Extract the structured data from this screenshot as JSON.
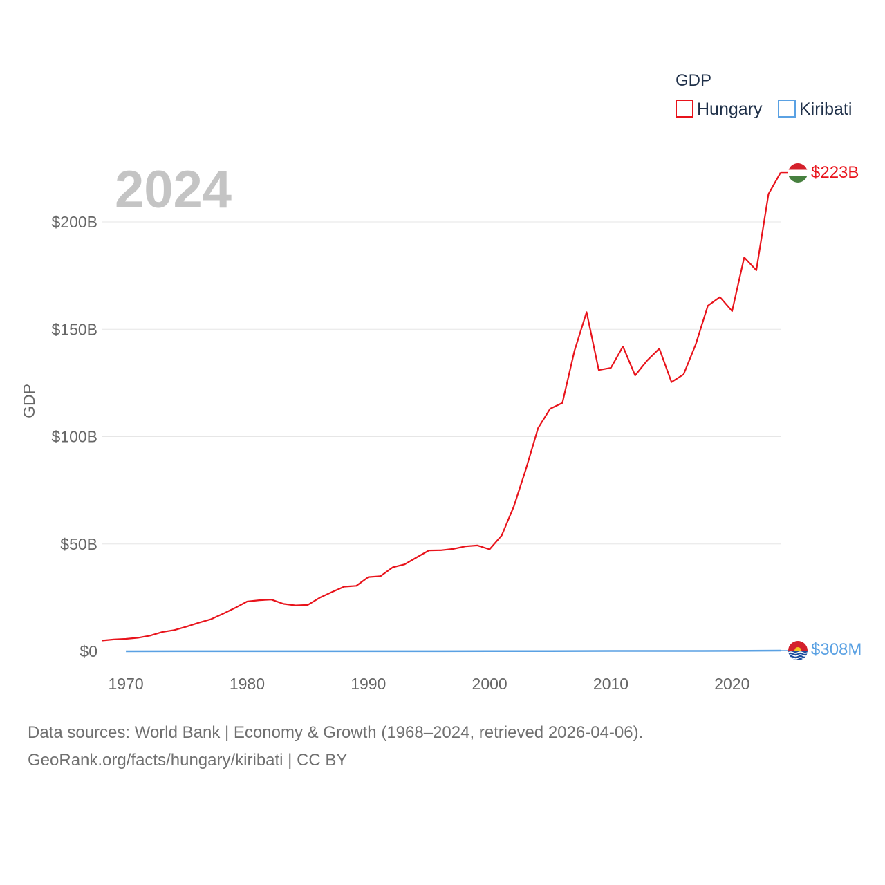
{
  "chart_data": {
    "type": "line",
    "current_year": "2024",
    "ylabel": "GDP",
    "xlabel": "",
    "xlim": [
      1968,
      2024
    ],
    "ylim": [
      0,
      230
    ],
    "y_unit": "billions USD",
    "x_ticks": [
      "1970",
      "1980",
      "1990",
      "2000",
      "2010",
      "2020"
    ],
    "y_ticks": [
      {
        "value": 0,
        "label": "$0"
      },
      {
        "value": 50,
        "label": "$50B"
      },
      {
        "value": 100,
        "label": "$100B"
      },
      {
        "value": 150,
        "label": "$150B"
      },
      {
        "value": 200,
        "label": "$200B"
      }
    ],
    "legend": {
      "title": "GDP",
      "placement": "top-right"
    },
    "series": [
      {
        "name": "Hungary",
        "color": "#e8131b",
        "end_label": "$223B",
        "flag": "hungary-flag",
        "x": [
          1968,
          1969,
          1970,
          1971,
          1972,
          1973,
          1974,
          1975,
          1976,
          1977,
          1978,
          1979,
          1980,
          1981,
          1982,
          1983,
          1984,
          1985,
          1986,
          1987,
          1988,
          1989,
          1990,
          1991,
          1992,
          1993,
          1994,
          1995,
          1996,
          1997,
          1998,
          1999,
          2000,
          2001,
          2002,
          2003,
          2004,
          2005,
          2006,
          2007,
          2008,
          2009,
          2010,
          2011,
          2012,
          2013,
          2014,
          2015,
          2016,
          2017,
          2018,
          2019,
          2020,
          2021,
          2022,
          2023,
          2024
        ],
        "values": [
          5.0,
          5.5,
          5.8,
          6.3,
          7.3,
          9.0,
          9.9,
          11.5,
          13.3,
          14.9,
          17.5,
          20.2,
          23.2,
          23.8,
          24.1,
          22.1,
          21.4,
          21.6,
          25.0,
          27.6,
          30.1,
          30.5,
          34.6,
          35.0,
          39.1,
          40.5,
          43.8,
          47.0,
          47.1,
          47.7,
          48.9,
          49.3,
          47.5,
          54.0,
          67.5,
          85.0,
          104.0,
          113.0,
          115.7,
          140.0,
          158.0,
          131.0,
          132.0,
          142.0,
          128.5,
          135.5,
          141.0,
          125.4,
          129.0,
          143.0,
          161.0,
          165.0,
          158.5,
          183.5,
          177.5,
          213.0,
          223.0
        ]
      },
      {
        "name": "Kiribati",
        "color": "#5aa1e3",
        "end_label": "$308M",
        "flag": "kiribati-flag",
        "x": [
          1970,
          1975,
          1980,
          1985,
          1990,
          1995,
          2000,
          2005,
          2010,
          2015,
          2020,
          2024
        ],
        "values": [
          0.015,
          0.024,
          0.038,
          0.027,
          0.028,
          0.046,
          0.067,
          0.112,
          0.156,
          0.171,
          0.181,
          0.308
        ]
      }
    ]
  },
  "footer": {
    "line1": "Data sources: World Bank | Economy & Growth (1968–2024, retrieved 2026-04-06).",
    "line2": "GeoRank.org/facts/hungary/kiribati | CC BY"
  }
}
